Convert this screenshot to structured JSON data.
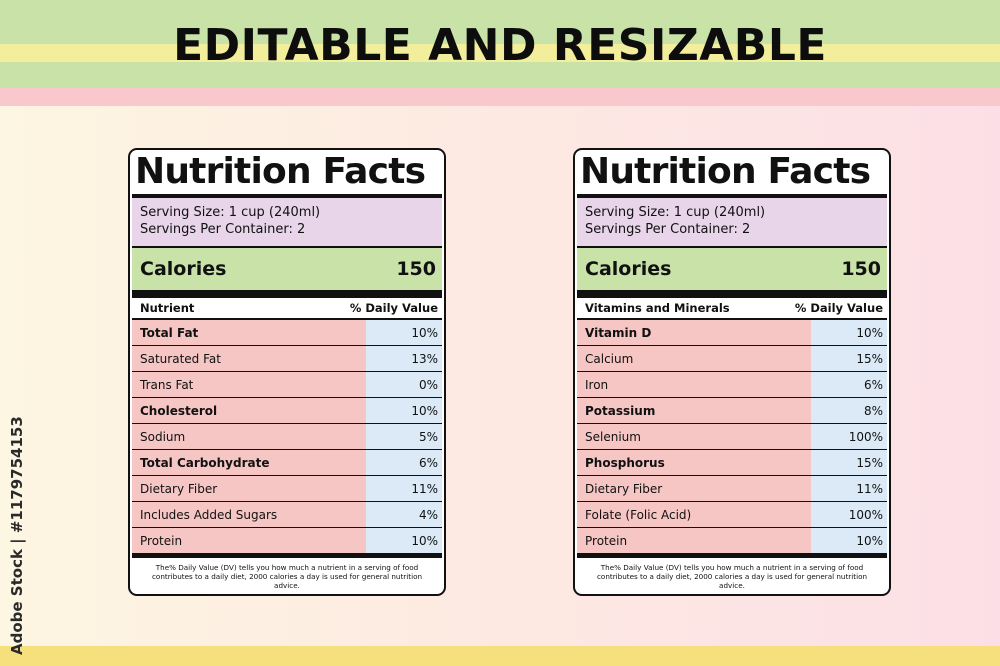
{
  "headline": "EDITABLE AND RESIZABLE",
  "side_text": "Adobe Stock | #1179754153",
  "colors": {
    "top_band": "#c8e2a8",
    "yellow_stripe": "#f2ee9c",
    "pink_band": "#f8c8cd",
    "bottom_band": "#f6e07e",
    "serving_bg": "#e8d5ea",
    "calories_bg": "#c8e2a8",
    "nutrient_bg": "#f6c6c4",
    "value_bg": "#dbeaf6"
  },
  "labels": [
    {
      "title": "Nutrition Facts",
      "serving_size": "Serving Size: 1 cup (240ml)",
      "servings_per_container": "Servings Per Container: 2",
      "calories_label": "Calories",
      "calories_value": "150",
      "column_left": "Nutrient",
      "column_right": "% Daily Value",
      "rows": [
        {
          "name": "Total Fat",
          "value": "10%",
          "bold": true
        },
        {
          "name": "Saturated Fat",
          "value": "13%",
          "bold": false
        },
        {
          "name": "Trans Fat",
          "value": "0%",
          "bold": false
        },
        {
          "name": "Cholesterol",
          "value": "10%",
          "bold": true
        },
        {
          "name": "Sodium",
          "value": "5%",
          "bold": false
        },
        {
          "name": "Total Carbohydrate",
          "value": "6%",
          "bold": true
        },
        {
          "name": "Dietary Fiber",
          "value": "11%",
          "bold": false
        },
        {
          "name": "Includes Added Sugars",
          "value": "4%",
          "bold": false
        },
        {
          "name": "Protein",
          "value": "10%",
          "bold": false
        }
      ],
      "footnote": "The% Daily Value (DV) tells you how much a nutrient in a serving of food contributes to a daily diet, 2000 calories a day is used for general nutrition advice."
    },
    {
      "title": "Nutrition Facts",
      "serving_size": "Serving Size: 1 cup (240ml)",
      "servings_per_container": "Servings Per Container: 2",
      "calories_label": "Calories",
      "calories_value": "150",
      "column_left": "Vitamins and Minerals",
      "column_right": "% Daily Value",
      "rows": [
        {
          "name": "Vitamin D",
          "value": "10%",
          "bold": true
        },
        {
          "name": "Calcium",
          "value": "15%",
          "bold": false
        },
        {
          "name": "Iron",
          "value": "6%",
          "bold": false
        },
        {
          "name": "Potassium",
          "value": "8%",
          "bold": true
        },
        {
          "name": "Selenium",
          "value": "100%",
          "bold": false
        },
        {
          "name": "Phosphorus",
          "value": "15%",
          "bold": true
        },
        {
          "name": "Dietary Fiber",
          "value": "11%",
          "bold": false
        },
        {
          "name": "Folate (Folic Acid)",
          "value": "100%",
          "bold": false
        },
        {
          "name": "Protein",
          "value": "10%",
          "bold": false
        }
      ],
      "footnote": "The% Daily Value (DV) tells you how much a nutrient in a serving of food contributes to a daily diet, 2000 calories a day is used for general nutrition advice."
    }
  ]
}
